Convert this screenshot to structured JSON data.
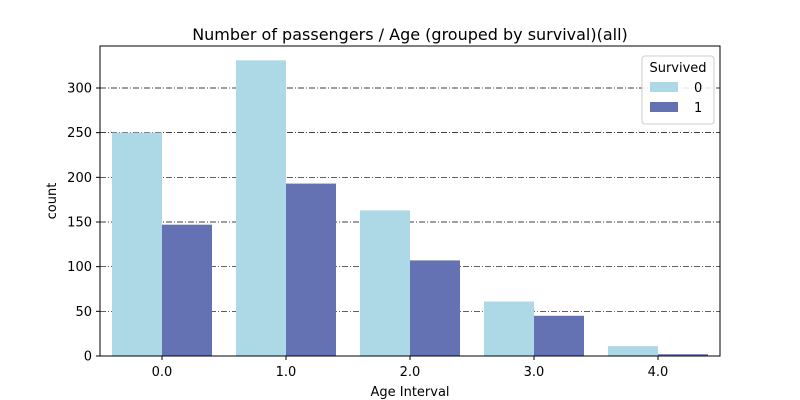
{
  "chart_data": {
    "type": "bar",
    "title": "Number of passengers / Age (grouped by survival)(all)",
    "xlabel": "Age Interval",
    "ylabel": "count",
    "categories": [
      "0.0",
      "1.0",
      "2.0",
      "3.0",
      "4.0"
    ],
    "series": [
      {
        "name": "0",
        "values": [
          250,
          331,
          163,
          61,
          11
        ],
        "color": "#add8e6"
      },
      {
        "name": "1",
        "values": [
          147,
          193,
          107,
          45,
          2
        ],
        "color": "#6471b3"
      }
    ],
    "ylim": [
      0,
      347
    ],
    "yticks": [
      0,
      50,
      100,
      150,
      200,
      250,
      300
    ],
    "grid": {
      "y": true,
      "style": "dash-dot",
      "color": "#000000"
    },
    "legend": {
      "title": "Survived",
      "placement": "top-right"
    }
  }
}
